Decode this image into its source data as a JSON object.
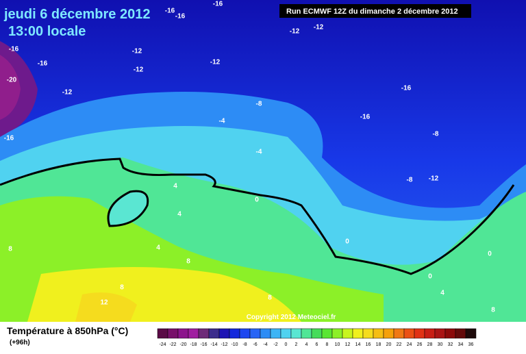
{
  "header": {
    "date": "jeudi 6 décembre 2012",
    "time": "13:00 locale",
    "run": "Run ECMWF 12Z du dimanche 2 décembre 2012"
  },
  "map": {
    "labels": [
      "-16",
      "-16",
      "-16",
      "-12",
      "-12",
      "-16",
      "-12",
      "-16",
      "-12",
      "-12",
      "-20",
      "-12",
      "-16",
      "-8",
      "-16",
      "-4",
      "-16",
      "-8",
      "-4",
      "-8",
      "-12",
      "4",
      "0",
      "4",
      "0",
      "8",
      "4",
      "0",
      "8",
      "0",
      "8",
      "4",
      "12",
      "8",
      "8"
    ],
    "copyright": "Copyright 2012 Meteociel.fr"
  },
  "footer": {
    "title": "Température à 850hPa (°C)",
    "lead": "(+96h)"
  },
  "legend": {
    "ticks": [
      -24,
      -22,
      -20,
      -18,
      -16,
      -14,
      -12,
      -10,
      -8,
      -6,
      -4,
      -2,
      0,
      2,
      4,
      6,
      8,
      10,
      12,
      14,
      16,
      18,
      20,
      22,
      24,
      26,
      28,
      30,
      32,
      34,
      36
    ],
    "colors": [
      "#5a0a46",
      "#78106a",
      "#8c148c",
      "#a01ea0",
      "#6e2a78",
      "#3c2c8c",
      "#1e14b4",
      "#1428dc",
      "#1e46f0",
      "#2864f5",
      "#2d8cf5",
      "#3cb4f5",
      "#50d2f0",
      "#5ae6d2",
      "#50e696",
      "#46dc5a",
      "#5ae632",
      "#8cf028",
      "#c8f51e",
      "#f0f01e",
      "#f5dc1e",
      "#f5be14",
      "#f5a00a",
      "#f07814",
      "#eb5014",
      "#e13214",
      "#c81e14",
      "#aa1414",
      "#8c0a0a",
      "#640a0a",
      "#1e0a0a"
    ]
  }
}
